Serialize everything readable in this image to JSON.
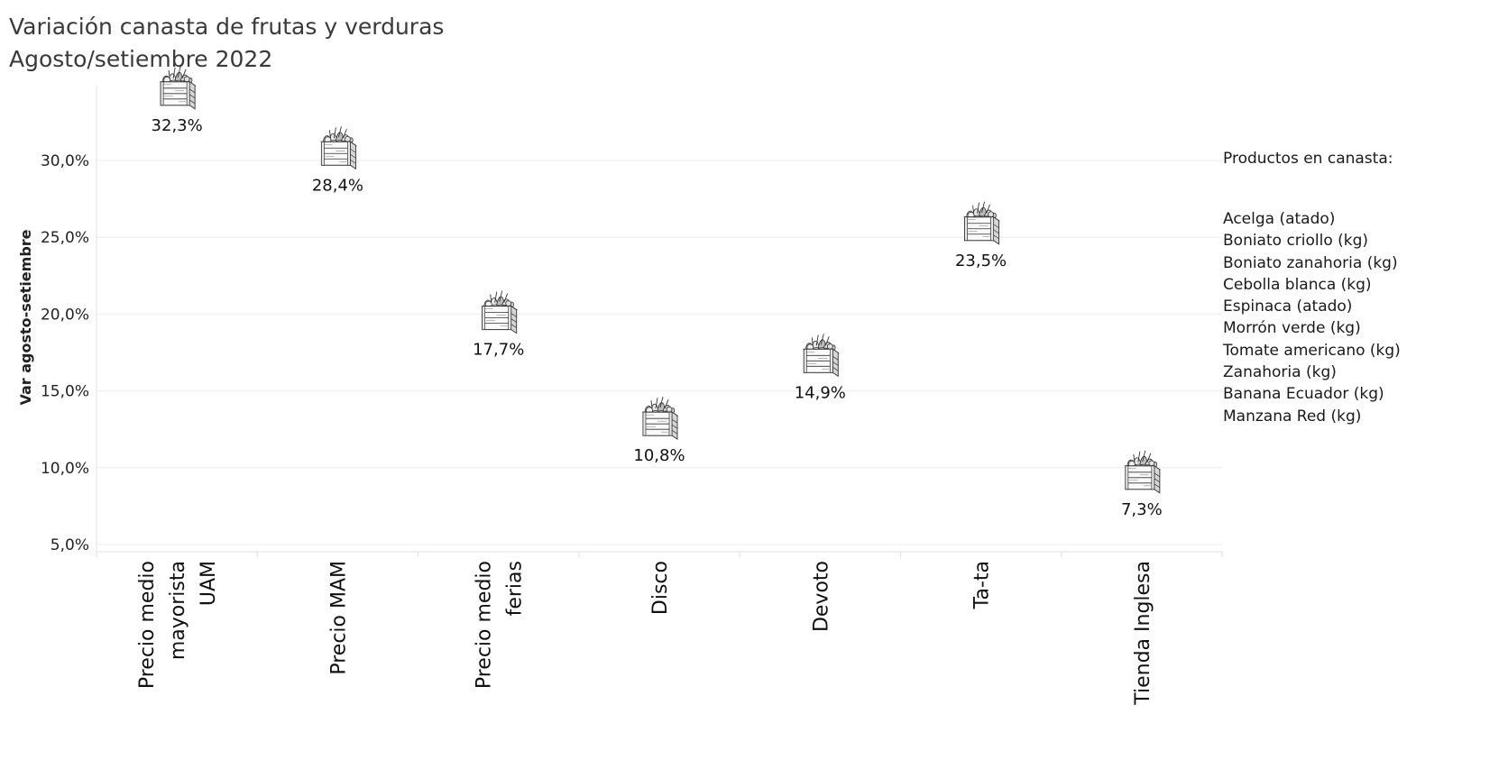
{
  "title": [
    "Variación canasta de frutas y verduras",
    "Agosto/setiembre 2022"
  ],
  "chart_data": {
    "type": "scatter",
    "marker": "vegetable-crate-icon",
    "ylabel": "Var agosto-setiembre",
    "yticks": [
      "5,0%",
      "10,0%",
      "15,0%",
      "20,0%",
      "25,0%",
      "30,0%"
    ],
    "ytick_values": [
      5,
      10,
      15,
      20,
      25,
      30
    ],
    "ylim": [
      4.5,
      33.5
    ],
    "grid": true,
    "categories": [
      [
        "Precio medio",
        "mayorista",
        "UAM"
      ],
      [
        "Precio MAM"
      ],
      [
        "Precio medio",
        "ferias"
      ],
      [
        "Disco"
      ],
      [
        "Devoto"
      ],
      [
        "Ta-ta"
      ],
      [
        "Tienda Inglesa"
      ]
    ],
    "values": [
      32.3,
      28.4,
      17.7,
      10.8,
      14.9,
      23.5,
      7.3
    ],
    "labels": [
      "32,3%",
      "28,4%",
      "17,7%",
      "10,8%",
      "14,9%",
      "23,5%",
      "7,3%"
    ]
  },
  "products": {
    "heading": "Productos en canasta:",
    "items": [
      "Acelga (atado)",
      "Boniato criollo (kg)",
      "Boniato zanahoria (kg)",
      "Cebolla blanca (kg)",
      "Espinaca (atado)",
      "Morrón verde (kg)",
      "Tomate americano (kg)",
      "Zanahoria (kg)",
      "Banana Ecuador (kg)",
      "Manzana Red (kg)"
    ]
  }
}
